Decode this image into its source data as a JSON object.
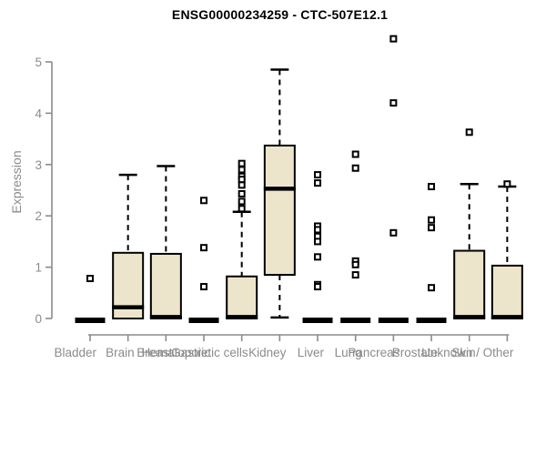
{
  "title": "ENSG00000234259 - CTC-507E12.1",
  "chart_data": {
    "type": "boxplot",
    "title": "ENSG00000234259 - CTC-507E12.1",
    "ylabel": "Expression",
    "xlabel": "",
    "ylim": [
      0,
      5
    ],
    "yticks": [
      0,
      1,
      2,
      3,
      4,
      5
    ],
    "grid": false,
    "legend": false,
    "categories": [
      "Bladder",
      "Brain",
      "Breast",
      "Gastric",
      "Hematopoietic cells",
      "Kidney",
      "Liver",
      "Lung",
      "Pancreas",
      "Prostate",
      "Skin",
      "Unknown / Other"
    ],
    "series": [
      {
        "category": "Bladder",
        "q1": 0,
        "median": 0,
        "q3": 0,
        "whisker_low": 0,
        "whisker_high": 0,
        "outliers": [
          0.78
        ]
      },
      {
        "category": "Brain",
        "q1": 0,
        "median": 0.22,
        "q3": 1.28,
        "whisker_low": 0,
        "whisker_high": 2.8,
        "outliers": []
      },
      {
        "category": "Breast",
        "q1": 0,
        "median": 0.03,
        "q3": 1.26,
        "whisker_low": 0,
        "whisker_high": 2.97,
        "outliers": []
      },
      {
        "category": "Gastric",
        "q1": 0,
        "median": 0,
        "q3": 0,
        "whisker_low": 0,
        "whisker_high": 0,
        "outliers": [
          2.3,
          1.38,
          0.62
        ]
      },
      {
        "category": "Hematopoietic cells",
        "q1": 0,
        "median": 0.03,
        "q3": 0.82,
        "whisker_low": 0,
        "whisker_high": 2.08,
        "outliers": [
          3.02,
          2.9,
          2.77,
          2.71,
          2.6,
          2.43,
          2.28,
          2.14
        ]
      },
      {
        "category": "Kidney",
        "q1": 0.85,
        "median": 2.53,
        "q3": 3.37,
        "whisker_low": 0.02,
        "whisker_high": 4.85,
        "outliers": []
      },
      {
        "category": "Liver",
        "q1": 0,
        "median": 0,
        "q3": 0,
        "whisker_low": 0,
        "whisker_high": 0,
        "outliers": [
          2.8,
          2.64,
          1.8,
          1.73,
          1.6,
          1.5,
          1.2,
          0.66,
          0.62
        ]
      },
      {
        "category": "Lung",
        "q1": 0,
        "median": 0,
        "q3": 0,
        "whisker_low": 0,
        "whisker_high": 0,
        "outliers": [
          3.2,
          2.93,
          1.12,
          1.05,
          0.85
        ]
      },
      {
        "category": "Pancreas",
        "q1": 0,
        "median": 0,
        "q3": 0,
        "whisker_low": 0,
        "whisker_high": 0,
        "outliers": [
          5.45,
          4.2,
          1.67
        ]
      },
      {
        "category": "Prostate",
        "q1": 0,
        "median": 0,
        "q3": 0,
        "whisker_low": 0,
        "whisker_high": 0,
        "outliers": [
          2.57,
          1.92,
          1.77,
          0.6
        ]
      },
      {
        "category": "Skin",
        "q1": 0,
        "median": 0.03,
        "q3": 1.32,
        "whisker_low": 0,
        "whisker_high": 2.62,
        "outliers": [
          3.63
        ]
      },
      {
        "category": "Unknown / Other",
        "q1": 0,
        "median": 0.03,
        "q3": 1.03,
        "whisker_low": 0,
        "whisker_high": 2.57,
        "outliers": [
          2.62
        ]
      }
    ],
    "colors": {
      "box_fill": "#ECE5CB",
      "box_border": "#000000",
      "median": "#000000",
      "whisker": "#000000",
      "outlier_border": "#000000",
      "outlier_fill": "#ffffff",
      "axis": "#8B8B8B",
      "tick_label": "#8B8B8B",
      "title": "#000000",
      "background": "#ffffff"
    }
  }
}
